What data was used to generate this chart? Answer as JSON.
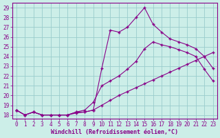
{
  "xlabel": "Windchill (Refroidissement éolien,°C)",
  "ylabel": "",
  "background_color": "#cceee8",
  "line_color": "#880088",
  "grid_color": "#99cccc",
  "xlim_min": -0.5,
  "xlim_max": 23.5,
  "ylim_min": 17.6,
  "ylim_max": 29.5,
  "yticks": [
    18,
    19,
    20,
    21,
    22,
    23,
    24,
    25,
    26,
    27,
    28,
    29
  ],
  "xticks": [
    0,
    1,
    2,
    3,
    4,
    5,
    6,
    7,
    8,
    9,
    10,
    11,
    12,
    13,
    14,
    15,
    16,
    17,
    18,
    19,
    20,
    21,
    22,
    23
  ],
  "line_spike_x": [
    0,
    1,
    2,
    3,
    4,
    5,
    6,
    7,
    8,
    9,
    10,
    11,
    12,
    13,
    14,
    15,
    16,
    17,
    18,
    19,
    20,
    21,
    22,
    23
  ],
  "line_spike_y": [
    18.5,
    18.0,
    18.3,
    18.0,
    18.0,
    18.0,
    18.0,
    18.3,
    18.3,
    18.5,
    22.8,
    26.7,
    26.5,
    27.0,
    28.0,
    29.0,
    27.3,
    26.5,
    25.8,
    25.5,
    25.2,
    24.8,
    24.0,
    22.8
  ],
  "line_mid_x": [
    0,
    1,
    2,
    3,
    4,
    5,
    6,
    7,
    8,
    9,
    10,
    11,
    12,
    13,
    14,
    15,
    16,
    17,
    18,
    19,
    20,
    21,
    22,
    23
  ],
  "line_mid_y": [
    18.5,
    18.0,
    18.3,
    18.0,
    18.0,
    18.0,
    18.0,
    18.3,
    18.5,
    19.3,
    21.0,
    21.5,
    22.0,
    22.7,
    23.5,
    24.8,
    25.5,
    25.2,
    25.0,
    24.7,
    24.4,
    24.0,
    22.7,
    21.5
  ],
  "line_low_x": [
    0,
    1,
    2,
    3,
    4,
    5,
    6,
    7,
    8,
    9,
    10,
    11,
    12,
    13,
    14,
    15,
    16,
    17,
    18,
    19,
    20,
    21,
    22,
    23
  ],
  "line_low_y": [
    18.5,
    18.0,
    18.3,
    18.0,
    18.0,
    18.0,
    18.0,
    18.2,
    18.3,
    18.5,
    19.0,
    19.5,
    20.0,
    20.4,
    20.8,
    21.2,
    21.6,
    22.0,
    22.4,
    22.8,
    23.2,
    23.6,
    24.0,
    24.4
  ]
}
